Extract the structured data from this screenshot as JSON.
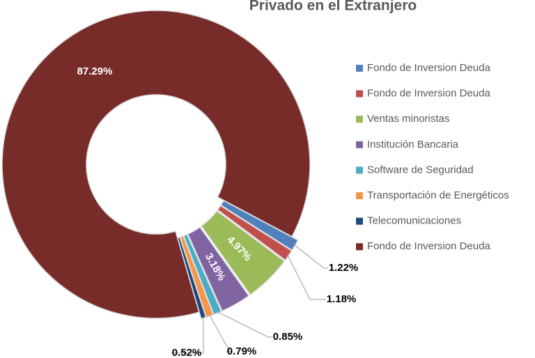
{
  "chart_data": {
    "type": "donut",
    "title": "Privado en el Extranjero",
    "categories": [
      "Fondo de Inversion Deuda",
      "Fondo de Inversion Deuda",
      "Ventas minoristas",
      "Institución Bancaria",
      "Software de Seguridad",
      "Transportación de Energéticos",
      "Telecomunicaciones",
      "Fondo de Inversion Deuda"
    ],
    "values": [
      1.22,
      1.18,
      4.97,
      3.18,
      0.85,
      0.79,
      0.52,
      87.29
    ],
    "value_labels": [
      "1.22%",
      "1.18%",
      "4.97%",
      "3.18%",
      "0.85%",
      "0.79%",
      "0.52%",
      "87.29%"
    ],
    "colors": [
      "#4f81bd",
      "#c0504d",
      "#9bbb59",
      "#8064a2",
      "#4bacc6",
      "#f79646",
      "#1f497d",
      "#772c2a"
    ],
    "legend": "right"
  }
}
